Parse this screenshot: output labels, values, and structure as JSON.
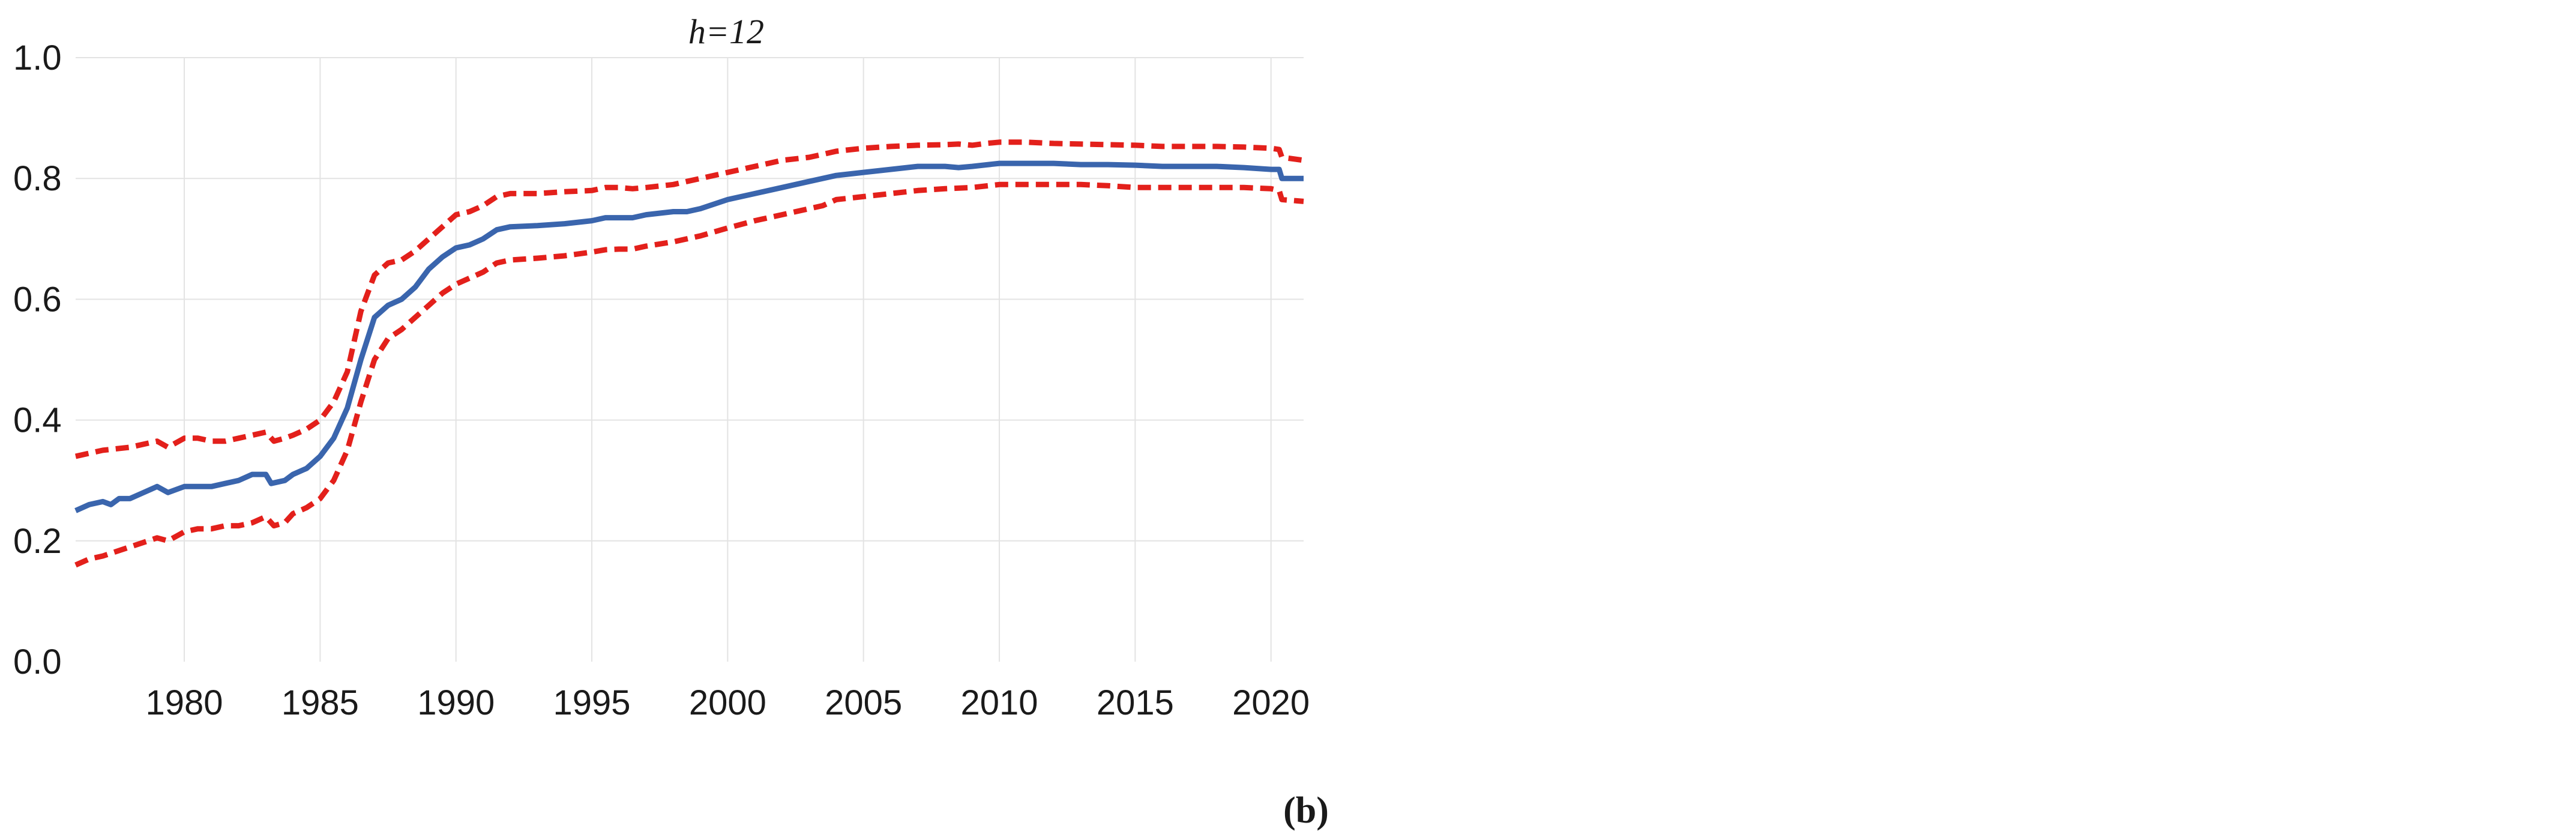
{
  "chart_data": {
    "type": "line",
    "title": "h=12",
    "panel_label": "(b)",
    "xlabel": "",
    "ylabel": "",
    "xlim": [
      1976.0,
      2021.2
    ],
    "ylim": [
      0.0,
      1.0
    ],
    "x_ticks": [
      "1980",
      "1985",
      "1990",
      "1995",
      "2000",
      "2005",
      "2010",
      "2015",
      "2020"
    ],
    "y_ticks": [
      "0.0",
      "0.2",
      "0.4",
      "0.6",
      "0.8",
      "1.0"
    ],
    "grid": true,
    "legend": "none",
    "series": [
      {
        "style": "solid",
        "color": "#3a65ad",
        "x": [
          1976.0,
          1976.5,
          1977.0,
          1977.3,
          1977.6,
          1978.0,
          1978.5,
          1979.0,
          1979.4,
          1980.0,
          1980.5,
          1981.0,
          1981.5,
          1982.0,
          1982.5,
          1983.0,
          1983.2,
          1983.7,
          1984.0,
          1984.5,
          1985.0,
          1985.5,
          1986.0,
          1986.5,
          1987.0,
          1987.5,
          1988.0,
          1988.5,
          1989.0,
          1989.5,
          1990.0,
          1990.5,
          1991.0,
          1991.5,
          1992.0,
          1993.0,
          1994.0,
          1995.0,
          1995.5,
          1996.0,
          1996.5,
          1997.0,
          1998.0,
          1998.5,
          1999.0,
          2000.0,
          2001.0,
          2002.0,
          2003.0,
          2003.5,
          2004.0,
          2005.0,
          2006.0,
          2007.0,
          2008.0,
          2008.5,
          2009.0,
          2010.0,
          2011.0,
          2012.0,
          2013.0,
          2014.0,
          2015.0,
          2016.0,
          2017.0,
          2018.0,
          2019.0,
          2020.0,
          2020.3,
          2020.4,
          2021.2
        ],
        "values": [
          0.25,
          0.26,
          0.265,
          0.26,
          0.27,
          0.27,
          0.28,
          0.29,
          0.28,
          0.29,
          0.29,
          0.29,
          0.295,
          0.3,
          0.31,
          0.31,
          0.295,
          0.3,
          0.31,
          0.32,
          0.34,
          0.37,
          0.42,
          0.5,
          0.57,
          0.59,
          0.6,
          0.62,
          0.65,
          0.67,
          0.685,
          0.69,
          0.7,
          0.715,
          0.72,
          0.722,
          0.725,
          0.73,
          0.735,
          0.735,
          0.735,
          0.74,
          0.745,
          0.745,
          0.75,
          0.765,
          0.775,
          0.785,
          0.795,
          0.8,
          0.805,
          0.81,
          0.815,
          0.82,
          0.82,
          0.818,
          0.82,
          0.825,
          0.825,
          0.825,
          0.823,
          0.823,
          0.822,
          0.82,
          0.82,
          0.82,
          0.818,
          0.815,
          0.815,
          0.8,
          0.8
        ]
      },
      {
        "style": "dashed",
        "color": "#e3201b",
        "x": [
          1976.0,
          1976.5,
          1977.0,
          1978.0,
          1979.0,
          1979.4,
          1980.0,
          1980.5,
          1981.0,
          1981.5,
          1982.0,
          1982.5,
          1983.0,
          1983.3,
          1983.7,
          1984.0,
          1984.5,
          1985.0,
          1985.5,
          1986.0,
          1986.5,
          1987.0,
          1987.5,
          1988.0,
          1988.5,
          1989.0,
          1989.5,
          1990.0,
          1990.5,
          1991.0,
          1991.5,
          1992.0,
          1993.0,
          1994.0,
          1995.0,
          1995.5,
          1996.0,
          1996.5,
          1997.0,
          1998.0,
          1998.5,
          1999.0,
          2000.0,
          2001.0,
          2001.5,
          2002.0,
          2003.0,
          2003.5,
          2004.0,
          2005.0,
          2006.0,
          2007.0,
          2008.0,
          2008.5,
          2009.0,
          2009.5,
          2010.0,
          2011.0,
          2012.0,
          2013.0,
          2014.0,
          2015.0,
          2016.0,
          2017.0,
          2018.0,
          2019.0,
          2020.0,
          2020.3,
          2020.4,
          2021.2
        ],
        "values": [
          0.34,
          0.345,
          0.35,
          0.355,
          0.365,
          0.355,
          0.37,
          0.37,
          0.365,
          0.365,
          0.37,
          0.375,
          0.38,
          0.365,
          0.37,
          0.375,
          0.385,
          0.4,
          0.43,
          0.48,
          0.58,
          0.64,
          0.66,
          0.665,
          0.68,
          0.7,
          0.72,
          0.74,
          0.745,
          0.755,
          0.77,
          0.775,
          0.775,
          0.778,
          0.78,
          0.785,
          0.785,
          0.783,
          0.785,
          0.79,
          0.795,
          0.8,
          0.81,
          0.82,
          0.825,
          0.83,
          0.835,
          0.84,
          0.845,
          0.85,
          0.853,
          0.855,
          0.856,
          0.857,
          0.855,
          0.858,
          0.86,
          0.86,
          0.858,
          0.857,
          0.856,
          0.855,
          0.853,
          0.853,
          0.853,
          0.852,
          0.85,
          0.848,
          0.835,
          0.83
        ]
      },
      {
        "style": "dashed",
        "color": "#e3201b",
        "x": [
          1976.0,
          1976.5,
          1977.0,
          1978.0,
          1979.0,
          1979.4,
          1980.0,
          1980.5,
          1981.0,
          1981.5,
          1982.0,
          1982.5,
          1983.0,
          1983.3,
          1983.7,
          1984.0,
          1984.5,
          1985.0,
          1985.5,
          1986.0,
          1986.5,
          1987.0,
          1987.5,
          1988.0,
          1988.5,
          1989.0,
          1989.5,
          1990.0,
          1990.5,
          1991.0,
          1991.5,
          1992.0,
          1993.0,
          1994.0,
          1995.0,
          1995.5,
          1996.0,
          1996.5,
          1997.0,
          1998.0,
          1998.5,
          1999.0,
          2000.0,
          2001.0,
          2002.0,
          2003.0,
          2003.5,
          2004.0,
          2005.0,
          2006.0,
          2007.0,
          2008.0,
          2009.0,
          2010.0,
          2011.0,
          2012.0,
          2013.0,
          2014.0,
          2015.0,
          2016.0,
          2017.0,
          2018.0,
          2019.0,
          2020.0,
          2020.3,
          2020.4,
          2021.2
        ],
        "values": [
          0.16,
          0.17,
          0.175,
          0.19,
          0.205,
          0.2,
          0.215,
          0.22,
          0.22,
          0.225,
          0.225,
          0.23,
          0.24,
          0.225,
          0.23,
          0.245,
          0.255,
          0.27,
          0.3,
          0.35,
          0.43,
          0.5,
          0.535,
          0.55,
          0.57,
          0.59,
          0.61,
          0.625,
          0.635,
          0.645,
          0.66,
          0.665,
          0.668,
          0.672,
          0.678,
          0.682,
          0.683,
          0.683,
          0.688,
          0.695,
          0.7,
          0.705,
          0.718,
          0.73,
          0.74,
          0.75,
          0.755,
          0.765,
          0.77,
          0.775,
          0.78,
          0.783,
          0.785,
          0.79,
          0.79,
          0.79,
          0.79,
          0.788,
          0.785,
          0.785,
          0.785,
          0.785,
          0.785,
          0.783,
          0.78,
          0.765,
          0.762
        ]
      }
    ]
  }
}
